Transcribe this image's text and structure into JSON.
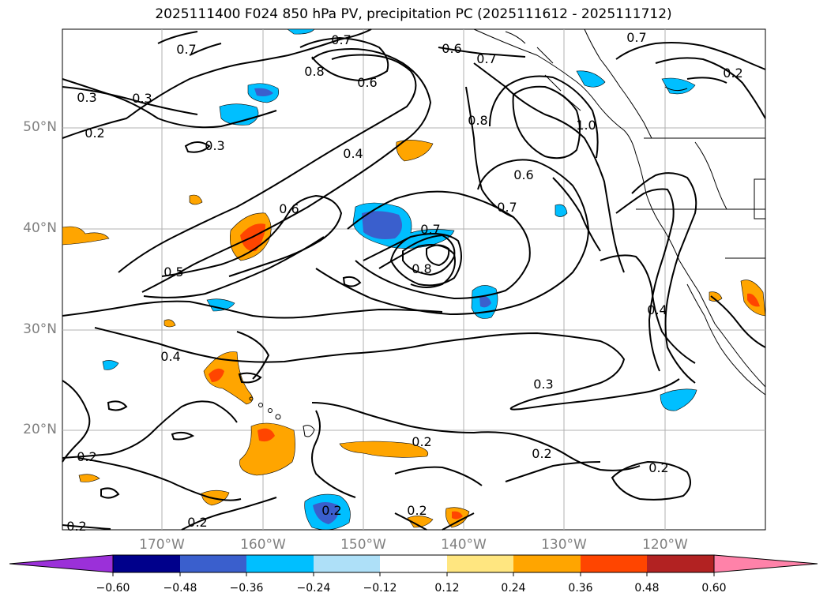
{
  "title": "2025111400 F024 850 hPa PV, precipitation PC (2025111612 - 2025111712)",
  "lat_labels": [
    "50°N",
    "40°N",
    "30°N",
    "20°N"
  ],
  "lon_labels": [
    "170°W",
    "160°W",
    "150°W",
    "140°W",
    "130°W",
    "120°W"
  ],
  "contour_labels": [
    "0.7",
    "0.7",
    "0.6",
    "0.7",
    "0.7",
    "0.8",
    "0.6",
    "0.3",
    "0.3",
    "0.2",
    "0.2",
    "0.3",
    "0.4",
    "0.8",
    "1.0",
    "0.6",
    "0.7",
    "0.6",
    "0.5",
    "0.7",
    "0.8",
    "0.4",
    "0.4",
    "0.3",
    "0.2",
    "0.2",
    "0.2",
    "0.2",
    "0.2",
    "0.2",
    "0.2",
    "0.2"
  ],
  "colorbar": {
    "ticks": [
      "−0.60",
      "−0.48",
      "−0.36",
      "−0.24",
      "−0.12",
      "0.12",
      "0.24",
      "0.36",
      "0.48",
      "0.60"
    ],
    "colors": [
      "#9b30d9",
      "#00008b",
      "#3a5fcd",
      "#00bfff",
      "#aee0f8",
      "#ffffff",
      "#ffe680",
      "#ffa500",
      "#ff4500",
      "#b22222",
      "#ff82a9"
    ]
  }
}
